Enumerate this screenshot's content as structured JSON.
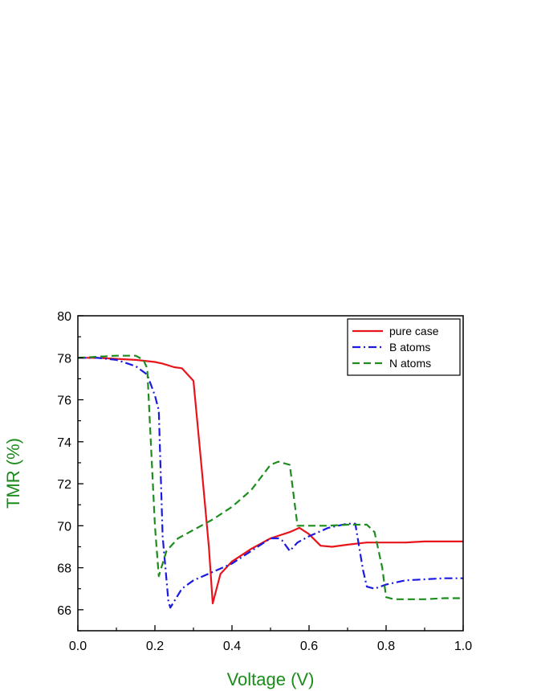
{
  "chart_data": {
    "type": "line",
    "xlabel": "Voltage (V)",
    "ylabel": "TMR (%)",
    "label_color": "#1a8c1a",
    "xlim": [
      0.0,
      1.0
    ],
    "ylim": [
      65,
      80
    ],
    "x_ticks": [
      0.0,
      0.2,
      0.4,
      0.6,
      0.8,
      1.0
    ],
    "x_tick_labels": [
      "0.0",
      "0.2",
      "0.4",
      "0.6",
      "0.8",
      "1.0"
    ],
    "y_ticks": [
      66,
      68,
      70,
      72,
      74,
      76,
      78,
      80
    ],
    "y_tick_labels": [
      "66",
      "68",
      "70",
      "72",
      "74",
      "76",
      "78",
      "80"
    ],
    "grid": false,
    "legend_position": "top-right",
    "series": [
      {
        "name": "pure case",
        "color": "#e8141c",
        "dash": "solid",
        "x": [
          0.0,
          0.05,
          0.1,
          0.15,
          0.2,
          0.22,
          0.25,
          0.27,
          0.3,
          0.32,
          0.34,
          0.35,
          0.37,
          0.4,
          0.45,
          0.5,
          0.55,
          0.575,
          0.6,
          0.63,
          0.66,
          0.7,
          0.75,
          0.8,
          0.85,
          0.9,
          0.95,
          1.0
        ],
        "y": [
          78.0,
          78.0,
          77.95,
          77.9,
          77.8,
          77.72,
          77.55,
          77.5,
          76.9,
          73.0,
          69.0,
          66.3,
          67.7,
          68.3,
          68.9,
          69.4,
          69.7,
          69.9,
          69.6,
          69.05,
          69.0,
          69.1,
          69.2,
          69.2,
          69.2,
          69.25,
          69.25,
          69.25
        ]
      },
      {
        "name": "B atoms",
        "color": "#1a1ae0",
        "dash": "dashdot",
        "x": [
          0.0,
          0.05,
          0.1,
          0.15,
          0.18,
          0.2,
          0.21,
          0.22,
          0.235,
          0.24,
          0.27,
          0.3,
          0.35,
          0.4,
          0.45,
          0.5,
          0.52,
          0.53,
          0.55,
          0.57,
          0.6,
          0.65,
          0.7,
          0.72,
          0.74,
          0.75,
          0.77,
          0.8,
          0.85,
          0.9,
          0.95,
          1.0
        ],
        "y": [
          78.0,
          78.0,
          77.9,
          77.6,
          77.2,
          76.2,
          75.5,
          69.5,
          66.4,
          66.1,
          67.0,
          67.4,
          67.8,
          68.2,
          68.8,
          69.4,
          69.4,
          69.3,
          68.8,
          69.2,
          69.5,
          69.9,
          70.1,
          70.1,
          67.9,
          67.1,
          67.0,
          67.2,
          67.4,
          67.45,
          67.5,
          67.5
        ]
      },
      {
        "name": "N atoms",
        "color": "#1e8c1e",
        "dash": "dashed",
        "x": [
          0.0,
          0.05,
          0.1,
          0.15,
          0.17,
          0.18,
          0.2,
          0.21,
          0.23,
          0.26,
          0.3,
          0.35,
          0.4,
          0.45,
          0.5,
          0.52,
          0.55,
          0.57,
          0.6,
          0.65,
          0.7,
          0.75,
          0.77,
          0.79,
          0.8,
          0.82,
          0.85,
          0.9,
          0.95,
          1.0
        ],
        "y": [
          78.0,
          78.05,
          78.1,
          78.1,
          77.9,
          77.5,
          70.0,
          67.6,
          68.8,
          69.4,
          69.8,
          70.3,
          70.9,
          71.7,
          72.9,
          73.05,
          72.9,
          70.0,
          70.0,
          70.0,
          70.05,
          70.05,
          69.7,
          68.0,
          66.6,
          66.5,
          66.5,
          66.5,
          66.55,
          66.55
        ]
      }
    ]
  }
}
